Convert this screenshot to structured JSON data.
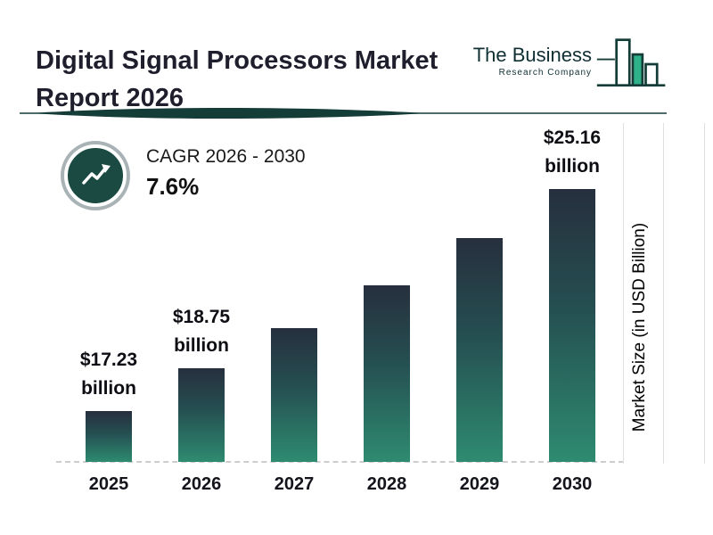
{
  "header": {
    "title": "Digital Signal Processors Market Report 2026",
    "logo": {
      "line1": "The Business",
      "line2": "Research Company"
    }
  },
  "cagr": {
    "label": "CAGR 2026 - 2030",
    "value": "7.6%"
  },
  "chart_data": {
    "type": "bar",
    "title": "Digital Signal Processors Market Report 2026",
    "categories": [
      "2025",
      "2026",
      "2027",
      "2028",
      "2029",
      "2030"
    ],
    "values": [
      17.23,
      18.75,
      20.2,
      21.7,
      23.4,
      25.16
    ],
    "data_labels": [
      "$17.23 billion",
      "$18.75 billion",
      null,
      null,
      null,
      "$25.16 billion"
    ],
    "xlabel": "",
    "ylabel": "Market Size (in USD Billion)",
    "ylim": [
      15.4,
      25.16
    ],
    "grid": "dashed baseline only",
    "legend": "none",
    "annotations": [
      "CAGR 2026 - 2030: 7.6%"
    ]
  },
  "icons": {
    "growth_arrow": "trending-up-arrow-icon",
    "logo_bars": "bar-chart-logo-icon"
  },
  "colors": {
    "bar_gradient_top": "#262f3d",
    "bar_gradient_bottom": "#2e8b70",
    "brand_teal": "#143d38",
    "logo_green": "#2fb289",
    "title_text": "#1e1e2d",
    "gridline": "#e0e0e0",
    "dashed_baseline": "#cdcdcd"
  }
}
